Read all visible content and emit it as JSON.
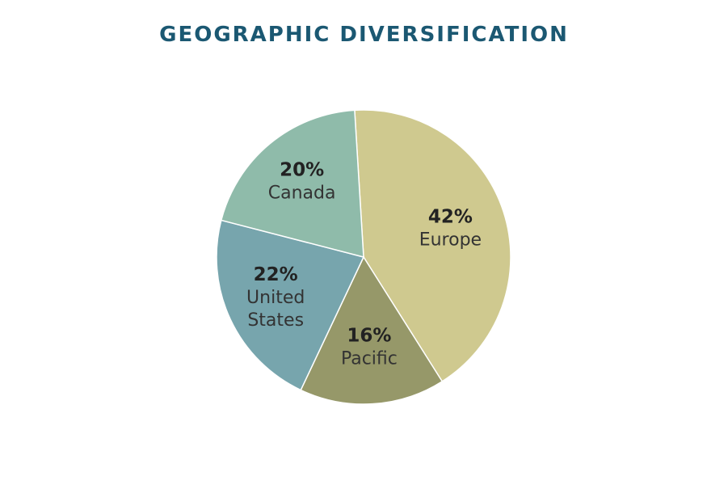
{
  "chart_data": {
    "type": "pie",
    "title": "GEOGRAPHIC DIVERSIFICATION",
    "slices": [
      {
        "label": [
          "Europe"
        ],
        "value": 42,
        "value_text": "42%",
        "color": "#cfc98f"
      },
      {
        "label": [
          "Pacific"
        ],
        "value": 16,
        "value_text": "16%",
        "color": "#969869"
      },
      {
        "label": [
          "United",
          "States"
        ],
        "value": 22,
        "value_text": "22%",
        "color": "#77a5ad"
      },
      {
        "label": [
          "Canada"
        ],
        "value": 20,
        "value_text": "20%",
        "color": "#8fbbaa"
      }
    ]
  }
}
